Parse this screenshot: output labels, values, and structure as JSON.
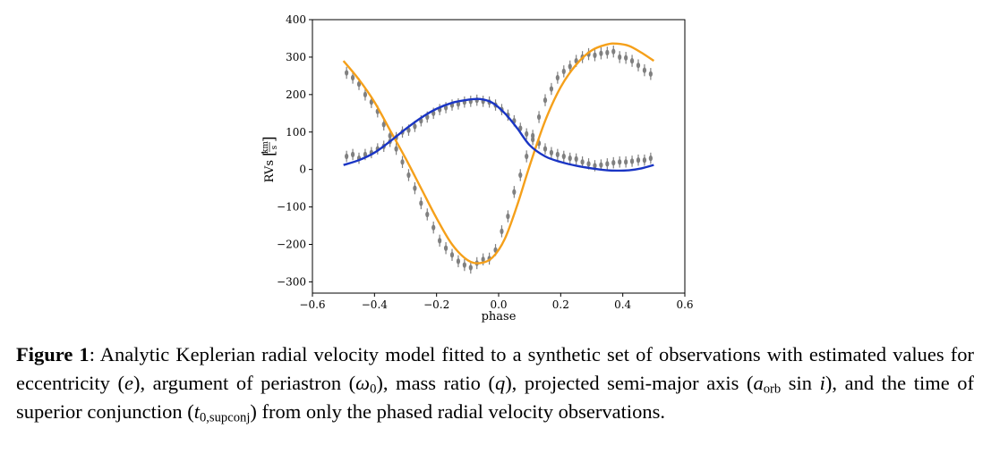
{
  "chart_data": {
    "type": "scatter",
    "xlabel": "phase",
    "ylabel": "RVs",
    "ylabel_unit_num": "km",
    "ylabel_unit_den": "s",
    "xlim": [
      -0.6,
      0.6
    ],
    "ylim": [
      -330,
      400
    ],
    "x_ticks": [
      -0.6,
      -0.4,
      -0.2,
      0.0,
      0.2,
      0.4,
      0.6
    ],
    "x_tick_labels": [
      "−0.6",
      "−0.4",
      "−0.2",
      "0.0",
      "0.2",
      "0.4",
      "0.6"
    ],
    "y_ticks": [
      400,
      300,
      200,
      100,
      0,
      -100,
      -200,
      -300
    ],
    "y_tick_labels": [
      "400",
      "300",
      "200",
      "100",
      "0",
      "−100",
      "−200",
      "−300"
    ],
    "grid": false,
    "legend": "none",
    "colors": {
      "model_primary": "#f5a01a",
      "model_secondary": "#1a35c4",
      "observations": "#808080"
    },
    "series": [
      {
        "kind": "model-line",
        "color": "#f5a01a",
        "x": [
          -0.5,
          -0.45,
          -0.4,
          -0.35,
          -0.3,
          -0.25,
          -0.2,
          -0.15,
          -0.1,
          -0.06,
          -0.02,
          0.02,
          0.06,
          0.1,
          0.15,
          0.2,
          0.25,
          0.3,
          0.35,
          0.38,
          0.42,
          0.46,
          0.5
        ],
        "y": [
          290,
          240,
          180,
          105,
          30,
          -50,
          -130,
          -200,
          -242,
          -250,
          -235,
          -185,
          -95,
          10,
          130,
          220,
          280,
          318,
          334,
          336,
          330,
          312,
          290
        ]
      },
      {
        "kind": "model-line",
        "color": "#1a35c4",
        "x": [
          -0.5,
          -0.45,
          -0.4,
          -0.35,
          -0.3,
          -0.25,
          -0.2,
          -0.15,
          -0.1,
          -0.06,
          -0.02,
          0.02,
          0.06,
          0.1,
          0.15,
          0.2,
          0.25,
          0.3,
          0.35,
          0.38,
          0.42,
          0.46,
          0.5
        ],
        "y": [
          12,
          25,
          45,
          75,
          108,
          138,
          162,
          178,
          186,
          188,
          178,
          150,
          110,
          65,
          35,
          20,
          10,
          3,
          -2,
          -3,
          -2,
          3,
          12
        ]
      },
      {
        "kind": "observations",
        "color": "#808080",
        "x": [
          -0.49,
          -0.47,
          -0.45,
          -0.43,
          -0.41,
          -0.39,
          -0.37,
          -0.35,
          -0.33,
          -0.31,
          -0.29,
          -0.27,
          -0.25,
          -0.23,
          -0.21,
          -0.19,
          -0.17,
          -0.15,
          -0.13,
          -0.11,
          -0.09,
          -0.07,
          -0.05,
          -0.03,
          -0.01,
          0.01,
          0.03,
          0.05,
          0.07,
          0.09,
          0.11,
          0.13,
          0.15,
          0.17,
          0.19,
          0.21,
          0.23,
          0.25,
          0.27,
          0.29,
          0.31,
          0.33,
          0.35,
          0.37,
          0.39,
          0.41,
          0.43,
          0.45,
          0.47,
          0.49
        ],
        "y": [
          258,
          245,
          228,
          200,
          180,
          155,
          120,
          90,
          55,
          20,
          -15,
          -50,
          -90,
          -120,
          -155,
          -190,
          -210,
          -228,
          -245,
          -255,
          -262,
          -250,
          -240,
          -238,
          -215,
          -165,
          -125,
          -60,
          -15,
          35,
          90,
          140,
          185,
          215,
          245,
          262,
          275,
          290,
          300,
          308,
          305,
          310,
          312,
          315,
          300,
          298,
          290,
          278,
          265,
          255
        ],
        "y_err": 16
      },
      {
        "kind": "observations",
        "color": "#808080",
        "x": [
          -0.49,
          -0.47,
          -0.45,
          -0.43,
          -0.41,
          -0.39,
          -0.37,
          -0.35,
          -0.33,
          -0.31,
          -0.29,
          -0.27,
          -0.25,
          -0.23,
          -0.21,
          -0.19,
          -0.17,
          -0.15,
          -0.13,
          -0.11,
          -0.09,
          -0.07,
          -0.05,
          -0.03,
          -0.01,
          0.01,
          0.03,
          0.05,
          0.07,
          0.09,
          0.11,
          0.13,
          0.15,
          0.17,
          0.19,
          0.21,
          0.23,
          0.25,
          0.27,
          0.29,
          0.31,
          0.33,
          0.35,
          0.37,
          0.39,
          0.41,
          0.43,
          0.45,
          0.47,
          0.49
        ],
        "y": [
          35,
          40,
          30,
          40,
          45,
          55,
          62,
          75,
          85,
          100,
          105,
          115,
          130,
          140,
          150,
          160,
          165,
          172,
          175,
          180,
          182,
          185,
          182,
          180,
          172,
          160,
          145,
          130,
          110,
          95,
          80,
          70,
          55,
          45,
          40,
          35,
          30,
          28,
          20,
          15,
          10,
          12,
          15,
          18,
          20,
          20,
          22,
          25,
          25,
          30
        ],
        "y_err": 15
      }
    ]
  },
  "caption": {
    "label": "Figure 1",
    "s1": ": Analytic Keplerian radial velocity model fitted to a synthetic set of observations with estimated values for eccentricity (",
    "v1": "e",
    "s2": "), argument of periastron (",
    "v2": "ω",
    "v2_sub": "0",
    "s3": "), mass ratio (",
    "v3": "q",
    "s4": "), projected semi-major axis (",
    "v4": "a",
    "v4_sub": "orb",
    "s5": " sin ",
    "v5": "i",
    "s6": "), and the time of superior conjunction (",
    "v6": "t",
    "v6_sub": "0,supconj",
    "s7": ") from only the phased radial velocity observations."
  }
}
